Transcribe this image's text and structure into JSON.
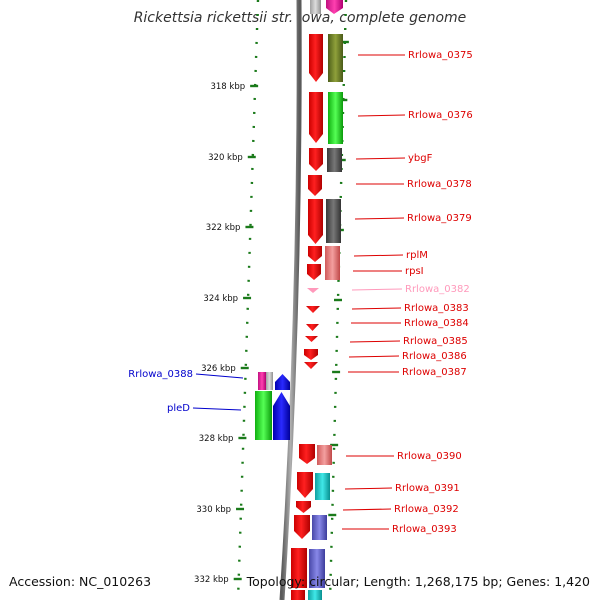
{
  "title": "Rickettsia rickettsii str. Iowa, complete genome",
  "footer": {
    "accession": "Accession: NC_010263",
    "topology": "Topology: circular; Length: 1,268,175 bp; Genes: 1,420"
  },
  "colors": {
    "backbone": "#888888",
    "tick": "#1a7a1a",
    "label_red": "#dd0000",
    "label_blue": "#0000cc",
    "label_pink": "#ff99bb"
  },
  "chart_data": {
    "type": "genome-map",
    "kbp_labels": [
      "318 kbp",
      "320 kbp",
      "322 kbp",
      "324 kbp",
      "326 kbp",
      "328 kbp",
      "330 kbp",
      "332 kbp"
    ],
    "genes": [
      {
        "name": "Rrlowa_0375",
        "label_color": "red"
      },
      {
        "name": "Rrlowa_0376",
        "label_color": "red"
      },
      {
        "name": "ybgF",
        "label_color": "red"
      },
      {
        "name": "Rrlowa_0378",
        "label_color": "red"
      },
      {
        "name": "Rrlowa_0379",
        "label_color": "red"
      },
      {
        "name": "rplM",
        "label_color": "red"
      },
      {
        "name": "rpsI",
        "label_color": "red"
      },
      {
        "name": "Rrlowa_0382",
        "label_color": "pink"
      },
      {
        "name": "Rrlowa_0383",
        "label_color": "red"
      },
      {
        "name": "Rrlowa_0384",
        "label_color": "red"
      },
      {
        "name": "Rrlowa_0385",
        "label_color": "red"
      },
      {
        "name": "Rrlowa_0386",
        "label_color": "red"
      },
      {
        "name": "Rrlowa_0387",
        "label_color": "red"
      },
      {
        "name": "Rrlowa_0388",
        "label_color": "blue"
      },
      {
        "name": "pleD",
        "label_color": "blue"
      },
      {
        "name": "Rrlowa_0390",
        "label_color": "red"
      },
      {
        "name": "Rrlowa_0391",
        "label_color": "red"
      },
      {
        "name": "Rrlowa_0392",
        "label_color": "red"
      },
      {
        "name": "Rrlowa_0393",
        "label_color": "red"
      }
    ]
  }
}
